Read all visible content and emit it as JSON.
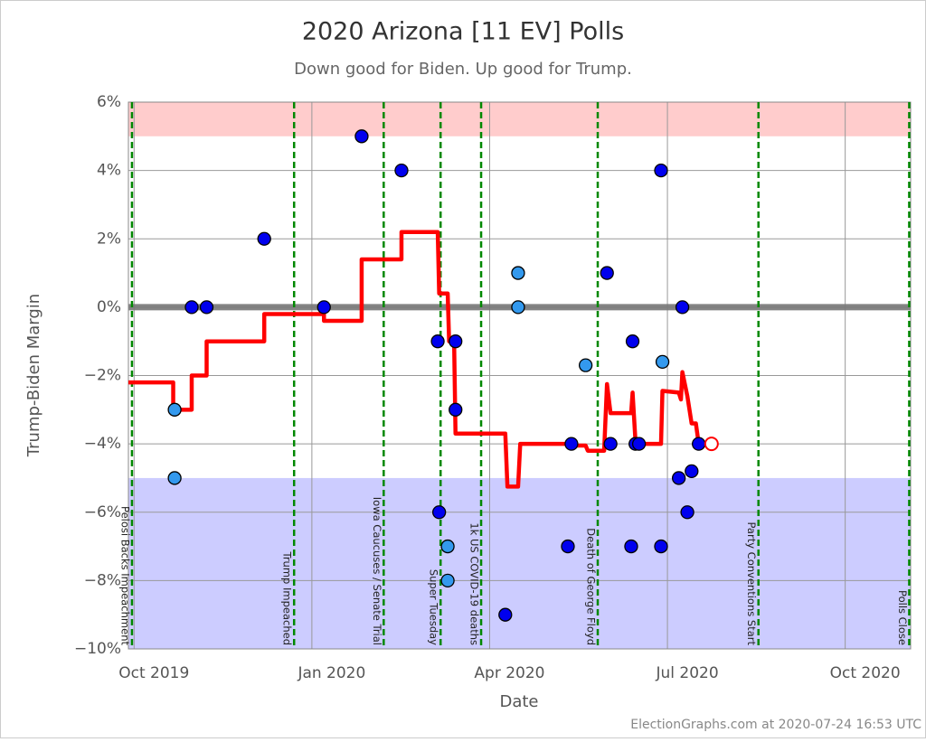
{
  "chart_data": {
    "type": "scatter",
    "title": "2020 Arizona [11 EV] Polls",
    "subtitle": "Down good for Biden. Up good for Trump.",
    "x_label": "Date",
    "y_label": "Trump-Biden Margin",
    "footer": "ElectionGraphs.com at 2020-07-24 16:53 UTC",
    "xlim": [
      2019.742,
      2020.842
    ],
    "ylim": [
      -10,
      6
    ],
    "xticks": [
      {
        "value": 2019.75,
        "label": "Oct 2019"
      },
      {
        "value": 2020.0,
        "label": "Jan 2020"
      },
      {
        "value": 2020.25,
        "label": "Apr 2020"
      },
      {
        "value": 2020.5,
        "label": "Jul 2020"
      },
      {
        "value": 2020.75,
        "label": "Oct 2020"
      }
    ],
    "yticks": [
      {
        "value": -10,
        "label": "−10%"
      },
      {
        "value": -8,
        "label": "−8%"
      },
      {
        "value": -6,
        "label": "−6%"
      },
      {
        "value": -4,
        "label": "−4%"
      },
      {
        "value": -2,
        "label": "−2%"
      },
      {
        "value": 0,
        "label": "0%"
      },
      {
        "value": 2,
        "label": "2%"
      },
      {
        "value": 4,
        "label": "4%"
      },
      {
        "value": 6,
        "label": "6%"
      }
    ],
    "grid": true,
    "zero_line": true,
    "bands": [
      {
        "from": 5,
        "to": 6,
        "color": "#ffcccc"
      },
      {
        "from": -10,
        "to": -5,
        "color": "#ccccff"
      }
    ],
    "events": [
      {
        "x": 2019.747,
        "label": "Pelosi Backs Impeachment"
      },
      {
        "x": 2019.975,
        "label": "Trump Impeached"
      },
      {
        "x": 2020.101,
        "label": "Iowa Caucuses / Senate Trial"
      },
      {
        "x": 2020.181,
        "label": "Super Tuesday"
      },
      {
        "x": 2020.238,
        "label": "1k US COVID-19 deaths"
      },
      {
        "x": 2020.402,
        "label": "Death of George Floyd"
      },
      {
        "x": 2020.628,
        "label": "Party Conventions Start"
      },
      {
        "x": 2020.84,
        "label": "Polls Close"
      }
    ],
    "event_color": "#008800",
    "series": [
      {
        "style": "step",
        "color": "#ff0000",
        "x": [
          2019.742,
          2019.805,
          2019.805,
          2019.831,
          2019.831,
          2019.852,
          2019.852,
          2019.933,
          2019.933,
          2020.017,
          2020.017,
          2020.07,
          2020.07,
          2020.126,
          2020.126,
          2020.177,
          2020.179,
          2020.191,
          2020.193,
          2020.2,
          2020.202,
          2020.272,
          2020.275,
          2020.29,
          2020.293,
          2020.36,
          2020.365,
          2020.385,
          2020.388,
          2020.411,
          2020.415,
          2020.42,
          2020.449,
          2020.451,
          2020.455,
          2020.46,
          2020.491,
          2020.493,
          2020.516,
          2020.519,
          2020.521,
          2020.528,
          2020.534,
          2020.54,
          2020.544,
          2020.562
        ],
        "values": [
          -2.2,
          -2.2,
          -3,
          -3,
          -2,
          -2,
          -1,
          -1,
          -0.2,
          -0.2,
          -0.4,
          -0.4,
          1.4,
          1.4,
          2.2,
          2.2,
          0.4,
          0.4,
          -1,
          -1,
          -3.7,
          -3.7,
          -5.25,
          -5.25,
          -4,
          -4,
          -4.05,
          -4.05,
          -4.2,
          -4.2,
          -2.25,
          -3.1,
          -3.1,
          -2.5,
          -3.9,
          -4,
          -4,
          -2.45,
          -2.5,
          -2.7,
          -1.9,
          -2.6,
          -3.4,
          -3.4,
          -4,
          -4
        ]
      },
      {
        "style": "points",
        "color": "#3399ee",
        "x": [
          2019.807,
          2019.807,
          2020.191,
          2020.191,
          2020.29,
          2020.29,
          2020.385,
          2020.493
        ],
        "values": [
          -3,
          -5,
          -7,
          -8,
          1,
          0,
          -1.7,
          -1.6
        ]
      },
      {
        "style": "points",
        "color": "#0000ee",
        "x": [
          2019.831,
          2019.852,
          2019.933,
          2020.017,
          2020.07,
          2020.126,
          2020.177,
          2020.179,
          2020.202,
          2020.202,
          2020.272,
          2020.36,
          2020.365,
          2020.415,
          2020.42,
          2020.449,
          2020.451,
          2020.455,
          2020.46,
          2020.491,
          2020.491,
          2020.516,
          2020.521,
          2020.528,
          2020.534,
          2020.544
        ],
        "values": [
          0,
          0,
          2,
          0,
          5,
          4,
          -1,
          -6,
          -1,
          -3,
          -9,
          -7,
          -4,
          1,
          -4,
          -7,
          -1,
          -4,
          -4,
          4,
          -7,
          -5,
          0,
          -6,
          -4.8,
          -4
        ]
      },
      {
        "style": "open",
        "color": "#ff0000",
        "x": [
          2020.562
        ],
        "values": [
          -4
        ]
      }
    ]
  }
}
